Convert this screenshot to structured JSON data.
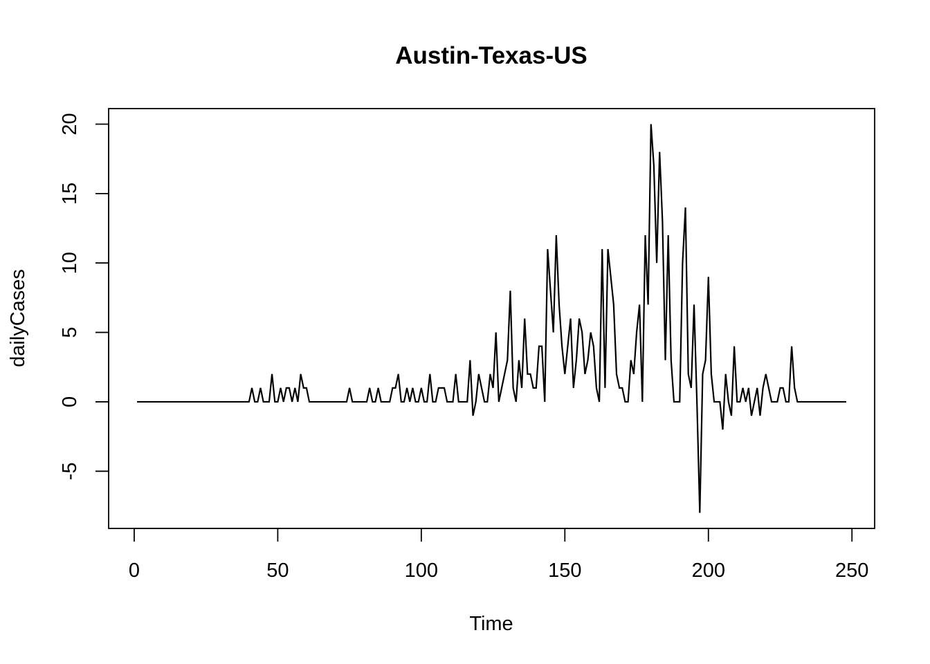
{
  "chart_data": {
    "type": "line",
    "title": "Austin-Texas-US",
    "xlabel": "Time",
    "ylabel": "dailyCases",
    "xlim": [
      -8.9,
      257.9
    ],
    "ylim": [
      -9.12,
      21.12
    ],
    "x_ticks": [
      0,
      50,
      100,
      150,
      200,
      250
    ],
    "y_ticks": [
      -5,
      0,
      5,
      10,
      15,
      20
    ],
    "x_tick_labels": [
      "0",
      "50",
      "100",
      "150",
      "200",
      "250"
    ],
    "y_tick_labels": [
      "-5",
      "0",
      "5",
      "10",
      "15",
      "20"
    ],
    "grid": false,
    "legend": "none",
    "line_color": "#000000",
    "x_start": 1,
    "y": [
      0,
      0,
      0,
      0,
      0,
      0,
      0,
      0,
      0,
      0,
      0,
      0,
      0,
      0,
      0,
      0,
      0,
      0,
      0,
      0,
      0,
      0,
      0,
      0,
      0,
      0,
      0,
      0,
      0,
      0,
      0,
      0,
      0,
      0,
      0,
      0,
      0,
      0,
      0,
      0,
      1,
      0,
      0,
      1,
      0,
      0,
      0,
      2,
      0,
      0,
      1,
      0,
      1,
      1,
      0,
      1,
      0,
      2,
      1,
      1,
      0,
      0,
      0,
      0,
      0,
      0,
      0,
      0,
      0,
      0,
      0,
      0,
      0,
      0,
      1,
      0,
      0,
      0,
      0,
      0,
      0,
      1,
      0,
      0,
      1,
      0,
      0,
      0,
      0,
      1,
      1,
      2,
      0,
      0,
      1,
      0,
      1,
      0,
      0,
      1,
      0,
      0,
      2,
      0,
      0,
      1,
      1,
      1,
      0,
      0,
      0,
      2,
      0,
      0,
      0,
      0,
      3,
      -1,
      0,
      2,
      1,
      0,
      0,
      2,
      1,
      5,
      0,
      1,
      2,
      3,
      8,
      1,
      0,
      3,
      1,
      6,
      2,
      2,
      1,
      1,
      4,
      4,
      0,
      11,
      8,
      5,
      12,
      7,
      4,
      2,
      4,
      6,
      1,
      3,
      6,
      5,
      2,
      3,
      5,
      4,
      1,
      0,
      11,
      1,
      11,
      9,
      7,
      2,
      1,
      1,
      0,
      0,
      3,
      2,
      5,
      7,
      0,
      12,
      7,
      20,
      17,
      10,
      18,
      13,
      3,
      12,
      3,
      0,
      0,
      0,
      10,
      14,
      2,
      1,
      7,
      0,
      -8,
      2,
      3,
      9,
      2,
      0,
      0,
      0,
      -2,
      2,
      0,
      -1,
      4,
      0,
      0,
      1,
      0,
      1,
      -1,
      0,
      1,
      -1,
      1,
      2,
      1,
      0,
      0,
      0,
      1,
      1,
      0,
      0,
      4,
      1,
      0,
      0,
      0,
      0,
      0,
      0,
      0,
      0,
      0,
      0,
      0,
      0,
      0,
      0,
      0,
      0,
      0,
      0
    ]
  }
}
